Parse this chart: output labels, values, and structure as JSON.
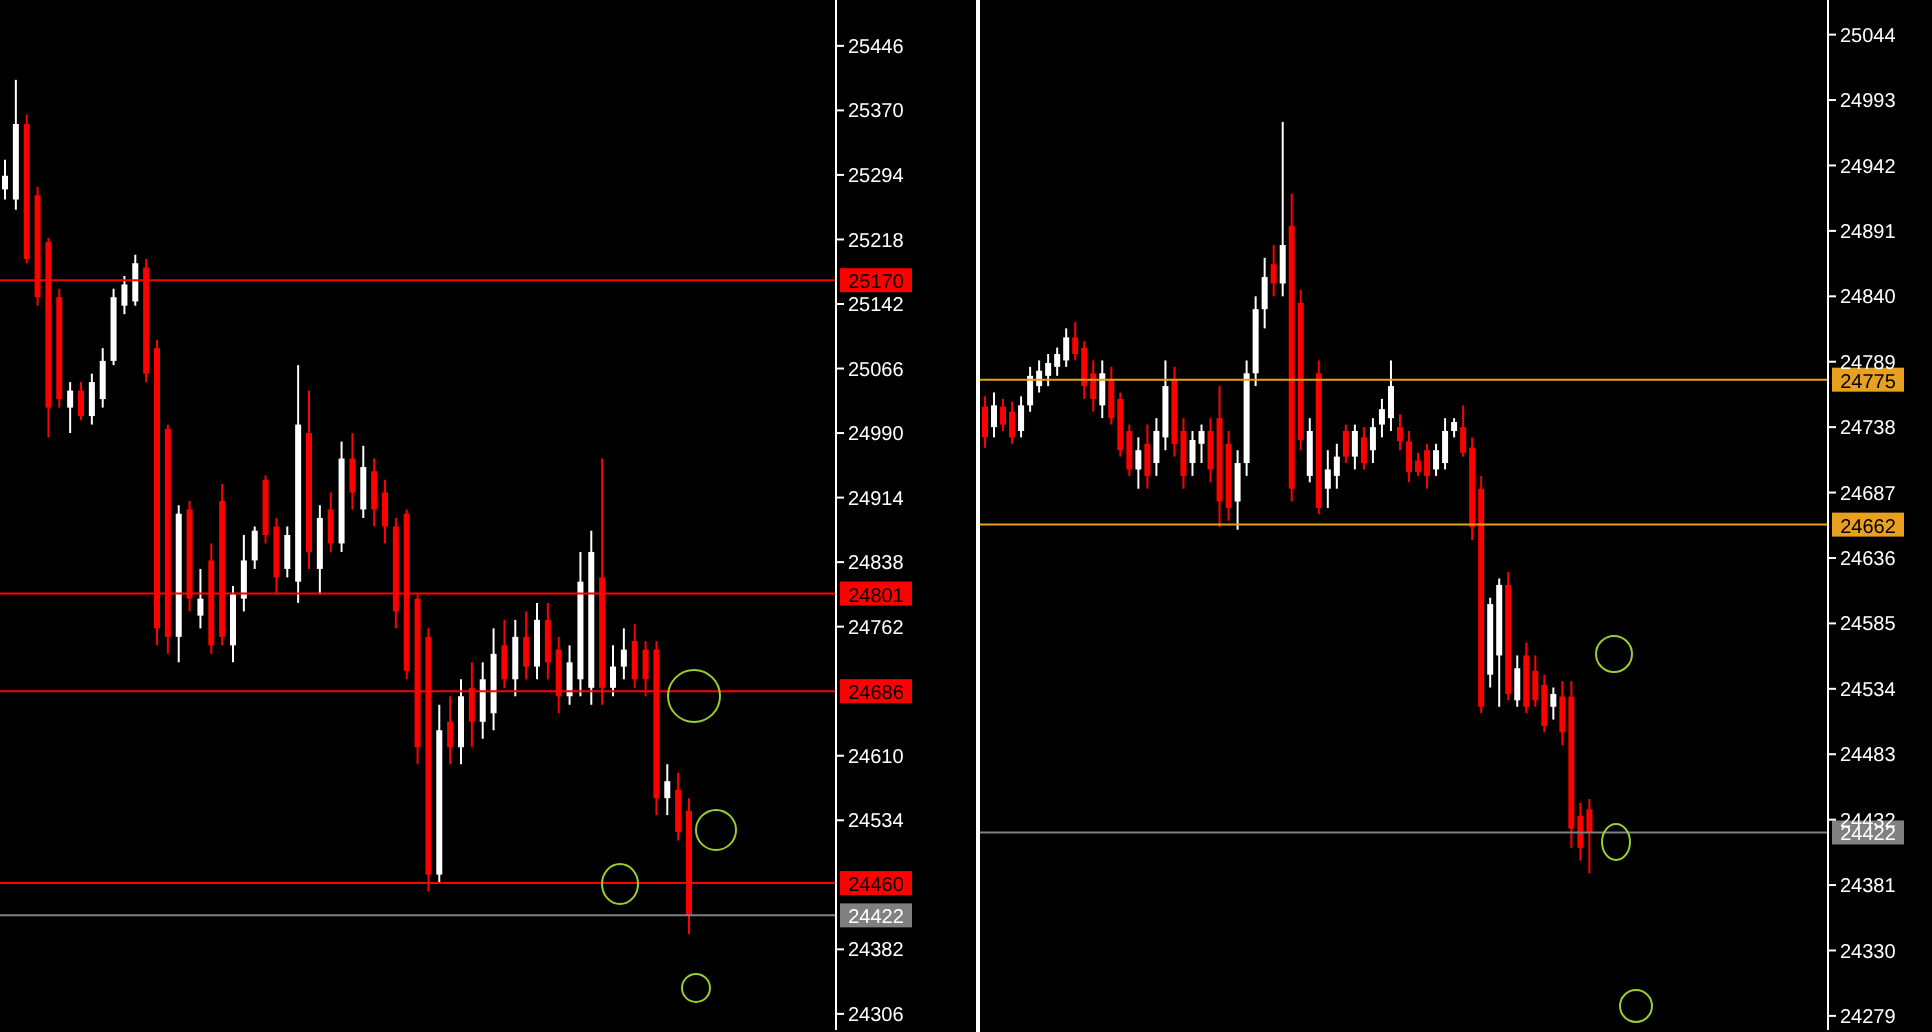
{
  "chart_data": [
    {
      "type": "candlestick",
      "tick_labels": "y",
      "categories": [
        null,
        null,
        null,
        null,
        null,
        null,
        null,
        null,
        null,
        null,
        null,
        null,
        null,
        null,
        null,
        null,
        null,
        null,
        null,
        null,
        null,
        null,
        null,
        null,
        null,
        null,
        null,
        null,
        null,
        null,
        null,
        null,
        null,
        null,
        null,
        null,
        null,
        null,
        null,
        null,
        null,
        null,
        null,
        null,
        null,
        null,
        null,
        null,
        null,
        null,
        null,
        null,
        null,
        null,
        null,
        null,
        null,
        null,
        null,
        null,
        null,
        null,
        null,
        null,
        null,
        null,
        null,
        null,
        null,
        null,
        null,
        null,
        null,
        null,
        null,
        null,
        null
      ],
      "ohlc": [
        [
          25277,
          25312,
          25265,
          25293
        ],
        [
          25265,
          25406,
          25253,
          25354
        ],
        [
          25354,
          25365,
          25190,
          25195
        ],
        [
          25270,
          25280,
          25140,
          25150
        ],
        [
          25215,
          25220,
          24985,
          25020
        ],
        [
          25150,
          25160,
          25020,
          25030
        ],
        [
          25020,
          25050,
          24990,
          25040
        ],
        [
          25040,
          25050,
          25005,
          25010
        ],
        [
          25010,
          25060,
          25000,
          25050
        ],
        [
          25030,
          25090,
          25020,
          25075
        ],
        [
          25075,
          25160,
          25070,
          25150
        ],
        [
          25140,
          25175,
          25130,
          25165
        ],
        [
          25145,
          25200,
          25140,
          25190
        ],
        [
          25185,
          25195,
          25050,
          25060
        ],
        [
          25090,
          25100,
          24740,
          24760
        ],
        [
          24995,
          25000,
          24730,
          24750
        ],
        [
          24750,
          24905,
          24720,
          24895
        ],
        [
          24900,
          24910,
          24780,
          24795
        ],
        [
          24775,
          24830,
          24760,
          24795
        ],
        [
          24840,
          24860,
          24730,
          24740
        ],
        [
          24910,
          24930,
          24740,
          24750
        ],
        [
          24740,
          24810,
          24720,
          24800
        ],
        [
          24795,
          24870,
          24780,
          24840
        ],
        [
          24840,
          24880,
          24830,
          24875
        ],
        [
          24935,
          24940,
          24860,
          24870
        ],
        [
          24880,
          24890,
          24800,
          24820
        ],
        [
          24830,
          24880,
          24820,
          24870
        ],
        [
          24815,
          25070,
          24790,
          25000
        ],
        [
          24990,
          25040,
          24830,
          24850
        ],
        [
          24830,
          24905,
          24800,
          24890
        ],
        [
          24900,
          24920,
          24850,
          24860
        ],
        [
          24860,
          24980,
          24850,
          24960
        ],
        [
          24960,
          24990,
          24900,
          24920
        ],
        [
          24900,
          24975,
          24890,
          24950
        ],
        [
          24945,
          24960,
          24880,
          24900
        ],
        [
          24920,
          24935,
          24860,
          24880
        ],
        [
          24880,
          24890,
          24760,
          24780
        ],
        [
          24895,
          24900,
          24700,
          24710
        ],
        [
          24795,
          24800,
          24600,
          24620
        ],
        [
          24750,
          24760,
          24450,
          24470
        ],
        [
          24470,
          24670,
          24460,
          24640
        ],
        [
          24650,
          24680,
          24600,
          24620
        ],
        [
          24620,
          24700,
          24600,
          24680
        ],
        [
          24690,
          24720,
          24620,
          24650
        ],
        [
          24650,
          24720,
          24630,
          24700
        ],
        [
          24660,
          24760,
          24640,
          24730
        ],
        [
          24740,
          24770,
          24690,
          24700
        ],
        [
          24700,
          24770,
          24680,
          24750
        ],
        [
          24750,
          24780,
          24700,
          24715
        ],
        [
          24715,
          24790,
          24700,
          24770
        ],
        [
          24770,
          24790,
          24700,
          24720
        ],
        [
          24735,
          24750,
          24660,
          24680
        ],
        [
          24680,
          24740,
          24670,
          24720
        ],
        [
          24700,
          24850,
          24680,
          24815
        ],
        [
          24690,
          24875,
          24670,
          24850
        ],
        [
          24820,
          24960,
          24670,
          24690
        ],
        [
          24690,
          24740,
          24680,
          24715
        ],
        [
          24715,
          24760,
          24700,
          24735
        ],
        [
          24745,
          24765,
          24690,
          24700
        ],
        [
          24735,
          24745,
          24680,
          24700
        ],
        [
          24735,
          24745,
          24540,
          24560
        ],
        [
          24560,
          24600,
          24540,
          24580
        ],
        [
          24570,
          24590,
          24510,
          24520
        ],
        [
          24545,
          24560,
          24400,
          24422
        ],
        null,
        null,
        null,
        null,
        null,
        null,
        null,
        null,
        null,
        null,
        null,
        null,
        null
      ],
      "ylim": [
        24287,
        25500
      ],
      "yticks": [
        25446,
        25370,
        25294,
        25218,
        25142,
        25066,
        24990,
        24914,
        24838,
        24762,
        24610,
        24534,
        24382,
        24306
      ],
      "ref_lines": [
        {
          "axis": "y",
          "value": 25170,
          "label": "25170",
          "color": "#ff0000"
        },
        {
          "axis": "y",
          "value": 24801,
          "label": "24801",
          "color": "#ff0000"
        },
        {
          "axis": "y",
          "value": 24686,
          "label": "24686",
          "color": "#ff0000"
        },
        {
          "axis": "y",
          "value": 24460,
          "label": "24460",
          "color": "#ff0000"
        },
        {
          "axis": "y",
          "value": 24422,
          "label": "24422",
          "color": "#808080"
        }
      ]
    },
    {
      "type": "candlestick",
      "tick_labels": "y",
      "categories": [
        null,
        null,
        null,
        null,
        null,
        null,
        null,
        null,
        null,
        null,
        null,
        null,
        null,
        null,
        null,
        null,
        null,
        null,
        null,
        null,
        null,
        null,
        null,
        null,
        null,
        null,
        null,
        null,
        null,
        null,
        null,
        null,
        null,
        null,
        null,
        null,
        null,
        null,
        null,
        null,
        null,
        null,
        null,
        null,
        null,
        null,
        null,
        null,
        null,
        null,
        null,
        null,
        null,
        null,
        null,
        null,
        null,
        null,
        null,
        null,
        null,
        null,
        null,
        null,
        null,
        null,
        null,
        null,
        null,
        null,
        null,
        null,
        null,
        null,
        null,
        null,
        null,
        null,
        null,
        null,
        null,
        null,
        null,
        null,
        null,
        null,
        null,
        null,
        null,
        null,
        null,
        null,
        null,
        null
      ],
      "ohlc": [
        [
          24754,
          24762,
          24722,
          24730
        ],
        [
          24738,
          24765,
          24730,
          24755
        ],
        [
          24754,
          24760,
          24735,
          24740
        ],
        [
          24750,
          24758,
          24725,
          24730
        ],
        [
          24735,
          24762,
          24730,
          24755
        ],
        [
          24755,
          24785,
          24750,
          24778
        ],
        [
          24770,
          24790,
          24765,
          24782
        ],
        [
          24778,
          24795,
          24770,
          24788
        ],
        [
          24785,
          24800,
          24778,
          24795
        ],
        [
          24790,
          24815,
          24785,
          24808
        ],
        [
          24808,
          24820,
          24790,
          24795
        ],
        [
          24800,
          24805,
          24760,
          24770
        ],
        [
          24780,
          24790,
          24750,
          24760
        ],
        [
          24755,
          24790,
          24745,
          24780
        ],
        [
          24775,
          24785,
          24740,
          24745
        ],
        [
          24760,
          24765,
          24715,
          24720
        ],
        [
          24735,
          24740,
          24700,
          24705
        ],
        [
          24705,
          24730,
          24690,
          24720
        ],
        [
          24725,
          24740,
          24690,
          24700
        ],
        [
          24710,
          24745,
          24700,
          24735
        ],
        [
          24730,
          24790,
          24720,
          24770
        ],
        [
          24775,
          24785,
          24715,
          24725
        ],
        [
          24735,
          24745,
          24690,
          24700
        ],
        [
          24710,
          24735,
          24700,
          24728
        ],
        [
          24725,
          24740,
          24710,
          24735
        ],
        [
          24735,
          24745,
          24695,
          24705
        ],
        [
          24745,
          24770,
          24660,
          24680
        ],
        [
          24725,
          24735,
          24665,
          24675
        ],
        [
          24680,
          24720,
          24658,
          24710
        ],
        [
          24710,
          24790,
          24700,
          24780
        ],
        [
          24780,
          24840,
          24770,
          24830
        ],
        [
          24830,
          24870,
          24815,
          24855
        ],
        [
          24865,
          24880,
          24840,
          24850
        ],
        [
          24850,
          24976,
          24840,
          24880
        ],
        [
          24895,
          24920,
          24680,
          24690
        ],
        [
          24835,
          24845,
          24720,
          24728
        ],
        [
          24700,
          24745,
          24695,
          24735
        ],
        [
          24780,
          24790,
          24670,
          24675
        ],
        [
          24690,
          24720,
          24675,
          24705
        ],
        [
          24700,
          24725,
          24690,
          24715
        ],
        [
          24735,
          24740,
          24710,
          24715
        ],
        [
          24715,
          24740,
          24705,
          24735
        ],
        [
          24730,
          24738,
          24705,
          24710
        ],
        [
          24720,
          24745,
          24710,
          24738
        ],
        [
          24740,
          24760,
          24730,
          24752
        ],
        [
          24745,
          24790,
          24735,
          24770
        ],
        [
          24738,
          24748,
          24720,
          24727
        ],
        [
          24727,
          24735,
          24695,
          24703
        ],
        [
          24712,
          24718,
          24700,
          24703
        ],
        [
          24720,
          24725,
          24690,
          24700
        ],
        [
          24705,
          24725,
          24700,
          24720
        ],
        [
          24710,
          24745,
          24705,
          24735
        ],
        [
          24735,
          24745,
          24730,
          24742
        ],
        [
          24738,
          24755,
          24715,
          24718
        ],
        [
          24722,
          24730,
          24650,
          24660
        ],
        [
          24690,
          24700,
          24515,
          24520
        ],
        [
          24545,
          24605,
          24535,
          24600
        ],
        [
          24560,
          24620,
          24520,
          24615
        ],
        [
          24615,
          24625,
          24525,
          24530
        ],
        [
          24525,
          24560,
          24520,
          24550
        ],
        [
          24560,
          24570,
          24515,
          24520
        ],
        [
          24548,
          24560,
          24520,
          24525
        ],
        [
          24537,
          24545,
          24500,
          24505
        ],
        [
          24520,
          24535,
          24510,
          24530
        ],
        [
          24528,
          24540,
          24490,
          24500
        ],
        [
          24528,
          24540,
          24410,
          24425
        ],
        [
          24435,
          24445,
          24400,
          24410
        ],
        [
          24440,
          24448,
          24390,
          24422
        ],
        null,
        null,
        null,
        null,
        null,
        null,
        null,
        null,
        null,
        null,
        null,
        null,
        null,
        null,
        null,
        null,
        null,
        null,
        null,
        null,
        null,
        null,
        null,
        null,
        null,
        null
      ],
      "ylim": [
        24268,
        25071
      ],
      "yticks": [
        25044,
        24993,
        24942,
        24891,
        24840,
        24789,
        24738,
        24687,
        24636,
        24585,
        24534,
        24483,
        24432,
        24381,
        24330,
        24279
      ],
      "ref_lines": [
        {
          "axis": "y",
          "value": 24775,
          "label": "24775",
          "color": "#e8a020"
        },
        {
          "axis": "y",
          "value": 24662,
          "label": "24662",
          "color": "#e8a020"
        },
        {
          "axis": "y",
          "value": 24422,
          "label": "24422",
          "color": "#808080"
        }
      ]
    }
  ]
}
